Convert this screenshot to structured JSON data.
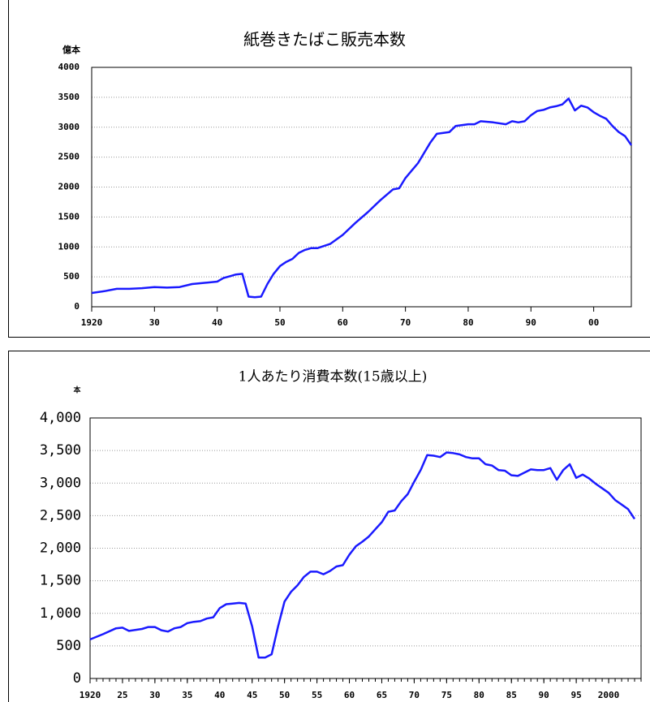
{
  "chart_data": [
    {
      "type": "line",
      "title": "紙巻きたばこ販売本数",
      "y_unit_label": "億本",
      "x": [
        1920,
        1922,
        1924,
        1926,
        1928,
        1930,
        1932,
        1934,
        1936,
        1938,
        1940,
        1941,
        1942,
        1943,
        1944,
        1945,
        1946,
        1947,
        1948,
        1949,
        1950,
        1951,
        1952,
        1953,
        1954,
        1955,
        1956,
        1958,
        1960,
        1962,
        1964,
        1966,
        1968,
        1969,
        1970,
        1972,
        1974,
        1975,
        1977,
        1978,
        1980,
        1981,
        1982,
        1984,
        1986,
        1987,
        1988,
        1989,
        1990,
        1991,
        1992,
        1993,
        1994,
        1995,
        1996,
        1997,
        1998,
        1999,
        2000,
        2001,
        2002,
        2003,
        2004,
        2005,
        2006
      ],
      "series": [
        {
          "color": "#1a1aff",
          "values": [
            230,
            260,
            300,
            300,
            310,
            330,
            320,
            330,
            380,
            400,
            420,
            480,
            510,
            540,
            550,
            170,
            160,
            170,
            380,
            550,
            680,
            750,
            800,
            900,
            950,
            980,
            980,
            1050,
            1200,
            1400,
            1580,
            1780,
            1960,
            1980,
            2150,
            2400,
            2750,
            2890,
            2920,
            3020,
            3050,
            3050,
            3100,
            3080,
            3050,
            3100,
            3080,
            3100,
            3200,
            3270,
            3290,
            3330,
            3350,
            3380,
            3480,
            3280,
            3360,
            3330,
            3250,
            3190,
            3140,
            3020,
            2920,
            2850,
            2700
          ]
        }
      ],
      "xlim": [
        1920,
        2006
      ],
      "xticks": [
        {
          "value": 1920,
          "label": "1920"
        },
        {
          "value": 1930,
          "label": "30"
        },
        {
          "value": 1940,
          "label": "40"
        },
        {
          "value": 1950,
          "label": "50"
        },
        {
          "value": 1960,
          "label": "60"
        },
        {
          "value": 1970,
          "label": "70"
        },
        {
          "value": 1980,
          "label": "80"
        },
        {
          "value": 1990,
          "label": "90"
        },
        {
          "value": 2000,
          "label": "00"
        }
      ],
      "ylim": [
        0,
        4000
      ],
      "yticks": [
        0,
        500,
        1000,
        1500,
        2000,
        2500,
        3000,
        3500,
        4000
      ],
      "grid": true
    },
    {
      "type": "line",
      "title": "1人あたり消費本数(15歳以上)",
      "y_unit_label": "本",
      "x": [
        1920,
        1922,
        1924,
        1925,
        1926,
        1928,
        1929,
        1930,
        1931,
        1932,
        1933,
        1934,
        1935,
        1936,
        1937,
        1938,
        1939,
        1940,
        1941,
        1942,
        1943,
        1944,
        1945,
        1946,
        1947,
        1948,
        1949,
        1950,
        1951,
        1952,
        1953,
        1954,
        1955,
        1956,
        1957,
        1958,
        1959,
        1960,
        1961,
        1962,
        1963,
        1964,
        1965,
        1966,
        1967,
        1968,
        1969,
        1970,
        1971,
        1972,
        1973,
        1974,
        1975,
        1976,
        1977,
        1978,
        1979,
        1980,
        1981,
        1982,
        1983,
        1984,
        1985,
        1986,
        1987,
        1988,
        1989,
        1990,
        1991,
        1992,
        1993,
        1994,
        1995,
        1996,
        1997,
        1998,
        1999,
        2000,
        2001,
        2002,
        2003,
        2004
      ],
      "series": [
        {
          "color": "#1a1aff",
          "values": [
            600,
            680,
            770,
            780,
            730,
            760,
            790,
            790,
            740,
            720,
            770,
            790,
            850,
            870,
            880,
            920,
            940,
            1080,
            1140,
            1150,
            1160,
            1150,
            800,
            320,
            320,
            370,
            800,
            1180,
            1330,
            1430,
            1560,
            1640,
            1640,
            1600,
            1650,
            1720,
            1740,
            1900,
            2030,
            2100,
            2180,
            2290,
            2400,
            2560,
            2580,
            2720,
            2830,
            3020,
            3200,
            3430,
            3420,
            3400,
            3470,
            3460,
            3440,
            3400,
            3380,
            3380,
            3290,
            3270,
            3200,
            3190,
            3120,
            3110,
            3160,
            3210,
            3200,
            3200,
            3230,
            3050,
            3200,
            3290,
            3080,
            3130,
            3070,
            2990,
            2920,
            2850,
            2740,
            2670,
            2600,
            2450
          ]
        }
      ],
      "xlim": [
        1920,
        2005
      ],
      "xticks": [
        {
          "value": 1920,
          "label": "1920"
        },
        {
          "value": 1925,
          "label": "25"
        },
        {
          "value": 1930,
          "label": "30"
        },
        {
          "value": 1935,
          "label": "35"
        },
        {
          "value": 1940,
          "label": "40"
        },
        {
          "value": 1945,
          "label": "45"
        },
        {
          "value": 1950,
          "label": "50"
        },
        {
          "value": 1955,
          "label": "55"
        },
        {
          "value": 1960,
          "label": "60"
        },
        {
          "value": 1965,
          "label": "65"
        },
        {
          "value": 1970,
          "label": "70"
        },
        {
          "value": 1975,
          "label": "75"
        },
        {
          "value": 1980,
          "label": "80"
        },
        {
          "value": 1985,
          "label": "85"
        },
        {
          "value": 1990,
          "label": "90"
        },
        {
          "value": 1995,
          "label": "95"
        },
        {
          "value": 2000,
          "label": "2000"
        }
      ],
      "ylim": [
        0,
        4000
      ],
      "yticks": [
        0,
        500,
        {
          "value": 1000,
          "label": "1,000"
        },
        {
          "value": 1500,
          "label": "1,500"
        },
        {
          "value": 2000,
          "label": "2,000"
        },
        {
          "value": 2500,
          "label": "2,500"
        },
        {
          "value": 3000,
          "label": "3,000"
        },
        {
          "value": 3500,
          "label": "3,500"
        },
        {
          "value": 4000,
          "label": "4,000"
        }
      ],
      "grid": true
    }
  ]
}
